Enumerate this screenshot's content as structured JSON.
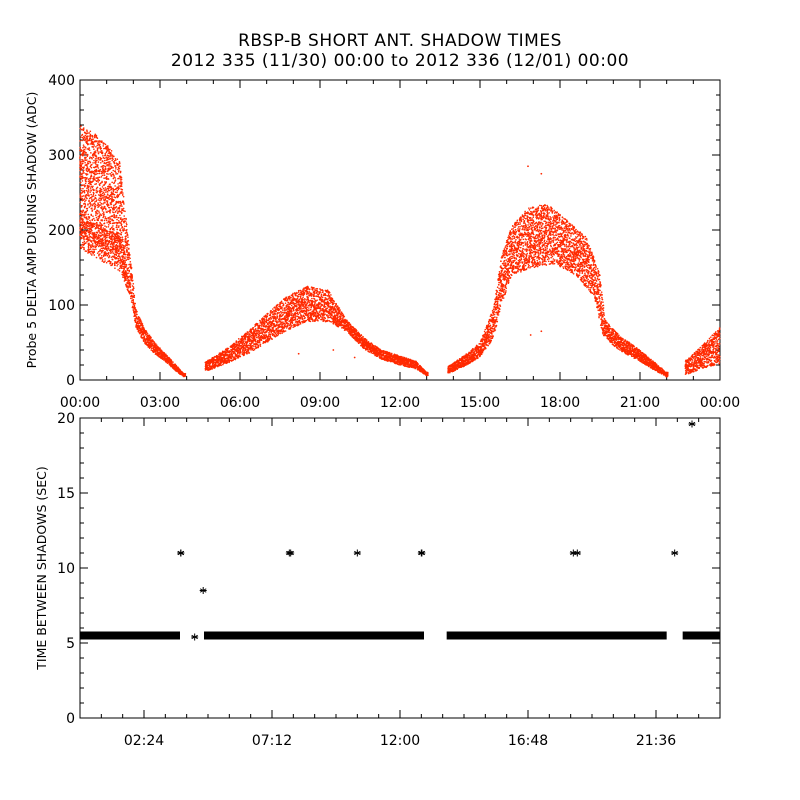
{
  "title_line1": "RBSP-B SHORT ANT. SHADOW TIMES",
  "title_line2": "2012 335 (11/30) 00:00 to 2012 336 (12/01) 00:00",
  "colors": {
    "top_points": "#ff2a00",
    "bottom_points": "#000000",
    "axes": "#000000"
  },
  "chart_data": [
    {
      "type": "scatter",
      "ylabel": "Probe 5 DELTA AMP DURING SHADOW (ADC)",
      "xlabel": "",
      "xlim": [
        0,
        24
      ],
      "ylim": [
        0,
        400
      ],
      "xticks": [
        0,
        3,
        6,
        9,
        12,
        15,
        18,
        21,
        24
      ],
      "xtick_labels": [
        "00:00",
        "03:00",
        "06:00",
        "09:00",
        "12:00",
        "15:00",
        "18:00",
        "21:00",
        "00:00"
      ],
      "yticks": [
        0,
        100,
        200,
        300,
        400
      ],
      "ytick_labels": [
        "0",
        "100",
        "200",
        "300",
        "400"
      ],
      "marker": "dot",
      "series": [
        {
          "band_low": [
            [
              0.0,
              175
            ],
            [
              0.5,
              165
            ],
            [
              1.0,
              155
            ],
            [
              1.5,
              145
            ],
            [
              1.9,
              110
            ],
            [
              2.1,
              70
            ],
            [
              2.4,
              50
            ],
            [
              2.8,
              35
            ],
            [
              3.2,
              25
            ],
            [
              3.6,
              12
            ],
            [
              3.9,
              4
            ],
            [
              4.75,
              12
            ],
            [
              5.5,
              22
            ],
            [
              6.3,
              35
            ],
            [
              7.0,
              50
            ],
            [
              7.7,
              65
            ],
            [
              8.5,
              78
            ],
            [
              9.3,
              78
            ],
            [
              10.0,
              65
            ],
            [
              10.7,
              40
            ],
            [
              11.3,
              28
            ],
            [
              12.0,
              20
            ],
            [
              12.6,
              15
            ],
            [
              13.0,
              6
            ],
            [
              13.9,
              10
            ],
            [
              14.5,
              20
            ],
            [
              15.0,
              30
            ],
            [
              15.5,
              55
            ],
            [
              15.8,
              100
            ],
            [
              16.2,
              140
            ],
            [
              17.0,
              150
            ],
            [
              17.8,
              155
            ],
            [
              18.6,
              140
            ],
            [
              19.3,
              110
            ],
            [
              19.6,
              60
            ],
            [
              20.2,
              40
            ],
            [
              21.0,
              25
            ],
            [
              21.6,
              12
            ],
            [
              22.0,
              4
            ],
            [
              22.8,
              8
            ],
            [
              23.3,
              15
            ],
            [
              24.0,
              22
            ]
          ],
          "band_high": [
            [
              0.0,
              340
            ],
            [
              0.5,
              330
            ],
            [
              1.0,
              315
            ],
            [
              1.5,
              290
            ],
            [
              1.9,
              160
            ],
            [
              2.1,
              95
            ],
            [
              2.4,
              70
            ],
            [
              2.8,
              50
            ],
            [
              3.2,
              35
            ],
            [
              3.6,
              20
            ],
            [
              3.9,
              8
            ],
            [
              4.75,
              25
            ],
            [
              5.5,
              42
            ],
            [
              6.3,
              65
            ],
            [
              7.0,
              88
            ],
            [
              7.7,
              110
            ],
            [
              8.5,
              125
            ],
            [
              9.3,
              120
            ],
            [
              10.0,
              80
            ],
            [
              10.7,
              55
            ],
            [
              11.3,
              40
            ],
            [
              12.0,
              32
            ],
            [
              12.6,
              25
            ],
            [
              13.0,
              10
            ],
            [
              13.9,
              20
            ],
            [
              14.5,
              35
            ],
            [
              15.0,
              50
            ],
            [
              15.5,
              95
            ],
            [
              15.8,
              165
            ],
            [
              16.2,
              205
            ],
            [
              16.8,
              230
            ],
            [
              17.5,
              235
            ],
            [
              18.2,
              215
            ],
            [
              19.0,
              190
            ],
            [
              19.5,
              140
            ],
            [
              19.7,
              80
            ],
            [
              20.2,
              60
            ],
            [
              21.0,
              40
            ],
            [
              21.6,
              22
            ],
            [
              22.0,
              10
            ],
            [
              22.8,
              28
            ],
            [
              23.3,
              45
            ],
            [
              24.0,
              70
            ]
          ],
          "secondary_band": {
            "low": [
              [
                0.0,
                190
              ],
              [
                0.5,
                185
              ],
              [
                1.0,
                175
              ],
              [
                1.5,
                160
              ],
              [
                1.8,
                120
              ]
            ],
            "high": [
              [
                0.0,
                215
              ],
              [
                0.5,
                210
              ],
              [
                1.0,
                200
              ],
              [
                1.5,
                195
              ],
              [
                1.8,
                140
              ]
            ]
          },
          "gaps": [
            [
              3.95,
              4.7
            ],
            [
              13.05,
              13.8
            ],
            [
              22.05,
              22.7
            ]
          ],
          "outliers": [
            [
              16.8,
              285
            ],
            [
              17.3,
              275
            ],
            [
              16.9,
              60
            ],
            [
              14.2,
              20
            ],
            [
              9.5,
              40
            ],
            [
              8.2,
              35
            ],
            [
              10.3,
              30
            ],
            [
              17.3,
              65
            ]
          ],
          "sample_interval_sec": 5.5
        }
      ]
    },
    {
      "type": "scatter",
      "ylabel": "TIME BETWEEN SHADOWS (SEC)",
      "xlabel": "",
      "xlim": [
        0,
        24
      ],
      "ylim": [
        0,
        20
      ],
      "xticks": [
        2.4,
        7.2,
        12.0,
        16.8,
        21.6
      ],
      "xtick_labels": [
        "02:24",
        "07:12",
        "12:00",
        "16:48",
        "21:36"
      ],
      "yticks": [
        0,
        5,
        10,
        15,
        20
      ],
      "ytick_labels": [
        "0",
        "5",
        "10",
        "15",
        "20"
      ],
      "marker": "asterisk",
      "series": [
        {
          "baseline_value": 5.5,
          "baseline_segments": [
            [
              0.0,
              3.75
            ],
            [
              4.65,
              12.9
            ],
            [
              13.75,
              22.0
            ],
            [
              22.6,
              24.0
            ]
          ],
          "points": [
            [
              3.78,
              11.0
            ],
            [
              3.78,
              11.0
            ],
            [
              4.3,
              5.4
            ],
            [
              4.62,
              8.5
            ],
            [
              7.85,
              11.0
            ],
            [
              7.9,
              11.0
            ],
            [
              10.4,
              11.0
            ],
            [
              12.8,
              11.0
            ],
            [
              12.82,
              11.0
            ],
            [
              18.5,
              11.0
            ],
            [
              18.65,
              11.0
            ],
            [
              22.3,
              11.0
            ],
            [
              22.95,
              19.6
            ]
          ]
        }
      ]
    }
  ]
}
